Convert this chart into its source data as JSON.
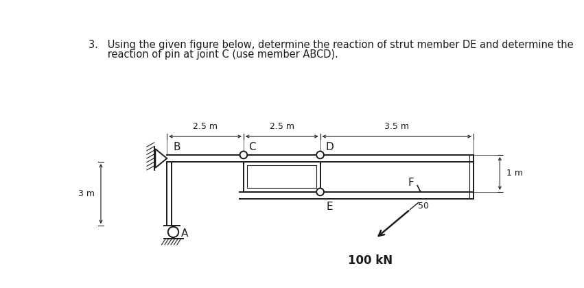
{
  "title_line1": "3.   Using the given figure below, determine the reaction of strut member DE and determine the",
  "title_line2": "      reaction of pin at joint C (use member ABCD).",
  "bg_color": "#ffffff",
  "line_color": "#1a1a1a",
  "font_size_title": 10.5,
  "font_size_label": 10,
  "font_size_dim": 9,
  "fig_width": 8.51,
  "fig_height": 4.2,
  "dpi": 100,
  "label_100kN": "100 kN",
  "label_50": "50",
  "label_A": "A",
  "label_B": "B",
  "label_C": "C",
  "label_D": "D",
  "label_E": "E",
  "label_F": "F",
  "dim_25_1": "2.5 m",
  "dim_25_2": "2.5 m",
  "dim_35": "3.5 m",
  "dim_3m": "3 m",
  "dim_1m": "1 m"
}
